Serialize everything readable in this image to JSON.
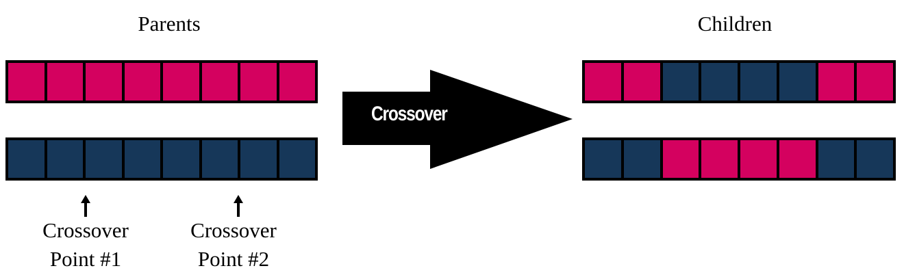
{
  "titles": {
    "parents": "Parents",
    "children": "Children"
  },
  "arrow": {
    "label": "Crossover",
    "color": "#000000",
    "label_color": "#ffffff"
  },
  "colors": {
    "magenta": "#d4015f",
    "navy": "#163759",
    "border": "#000000"
  },
  "chromosomes": {
    "parent_1": [
      "magenta",
      "magenta",
      "magenta",
      "magenta",
      "magenta",
      "magenta",
      "magenta",
      "magenta"
    ],
    "parent_2": [
      "navy",
      "navy",
      "navy",
      "navy",
      "navy",
      "navy",
      "navy",
      "navy"
    ],
    "child_1": [
      "magenta",
      "magenta",
      "navy",
      "navy",
      "navy",
      "navy",
      "magenta",
      "magenta"
    ],
    "child_2": [
      "navy",
      "navy",
      "magenta",
      "magenta",
      "magenta",
      "magenta",
      "navy",
      "navy"
    ]
  },
  "crossover_points": [
    {
      "line1": "Crossover",
      "line2": "Point #1",
      "icon": "up-arrow-icon"
    },
    {
      "line1": "Crossover",
      "line2": "Point #2",
      "icon": "up-arrow-icon"
    }
  ]
}
